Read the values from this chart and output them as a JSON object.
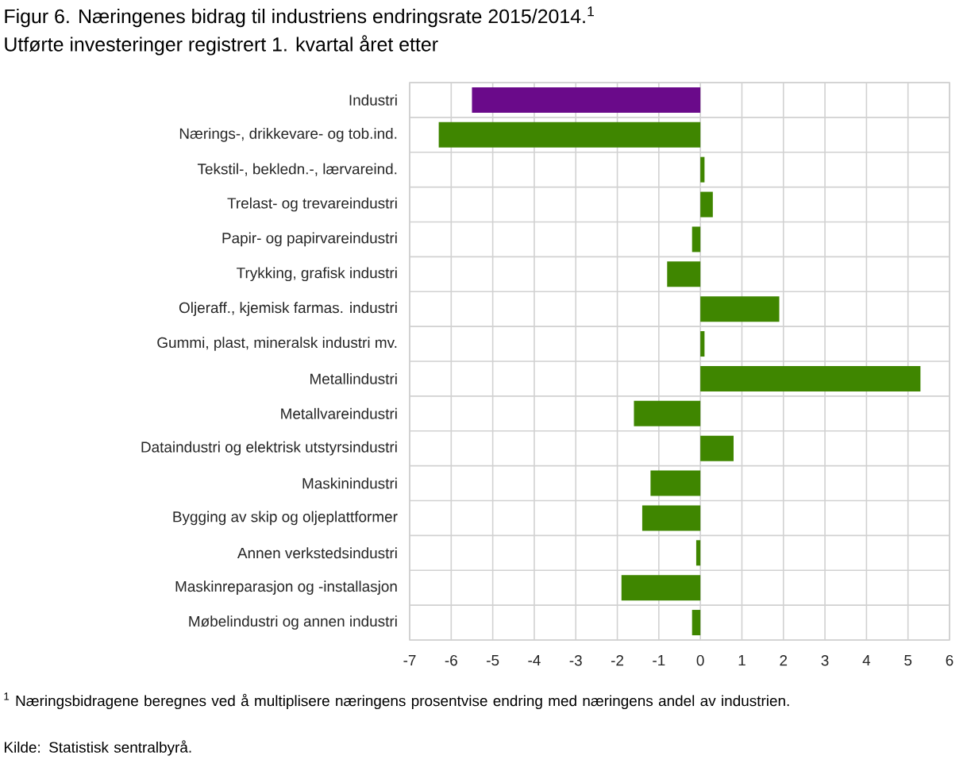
{
  "chart_data": {
    "type": "bar",
    "orientation": "horizontal",
    "title": "Figur 6. Næringenes bidrag til industriens endringsrate 2015/2014.$^{1}$",
    "subtitle": "Utførte investeringer registrert 1. kvartal året etter",
    "categories": [
      "Industri",
      "Nærings-, drikkevare- og tob.ind.",
      "Tekstil-, bekledn.-, lærvareind.",
      "Trelast- og trevareindustri",
      "Papir- og papirvareindustri",
      "Trykking, grafisk industri",
      "Oljeraff., kjemisk farmas. industri",
      "Gummi, plast, mineralsk industri mv.",
      "Metallindustri",
      "Metallvareindustri",
      "Dataindustri og elektrisk utstyrsindustri",
      "Maskinindustri",
      "Bygging av skip og oljeplattformer",
      "Annen verkstedsindustri",
      "Maskinreparasjon og -installasjon",
      "Møbelindustri og annen industri"
    ],
    "values": [
      -5.5,
      -6.3,
      0.1,
      0.3,
      -0.2,
      -0.8,
      1.9,
      0.1,
      5.3,
      -1.6,
      0.8,
      -1.2,
      -1.4,
      -0.1,
      -1.9,
      -0.2
    ],
    "colors": [
      "#6a0a8a",
      "#3f8600",
      "#3f8600",
      "#3f8600",
      "#3f8600",
      "#3f8600",
      "#3f8600",
      "#3f8600",
      "#3f8600",
      "#3f8600",
      "#3f8600",
      "#3f8600",
      "#3f8600",
      "#3f8600",
      "#3f8600",
      "#3f8600"
    ],
    "xlim": [
      -7,
      6
    ],
    "xticks": [
      -7,
      -6,
      -5,
      -4,
      -3,
      -2,
      -1,
      0,
      1,
      2,
      3,
      4,
      5,
      6
    ],
    "grid": true,
    "annotations": [
      "$^{1}$ Næringsbidragene beregnes ved å multiplisere næringens prosentvise endring med næringens andel av industrien.",
      "Kilde: Statistisk sentralbyrå."
    ]
  }
}
